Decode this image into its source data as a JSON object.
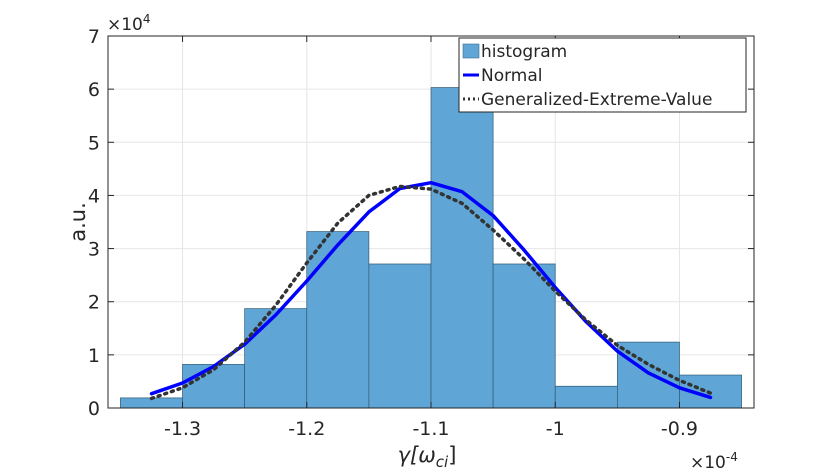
{
  "chart_data": {
    "type": "bar",
    "xlabel": "γ[ω",
    "xlabel_sub": "ci",
    "xlabel_close": "]",
    "ylabel": "a.u.",
    "x_multiplier": "×10",
    "x_multiplier_exp": "-4",
    "y_multiplier": "×10",
    "y_multiplier_exp": "4",
    "xlim": [
      -1.36,
      -0.84
    ],
    "ylim": [
      0,
      7
    ],
    "grid": true,
    "legend_position": "top-right",
    "x_ticks": [
      -1.3,
      -1.2,
      -1.1,
      -1.0,
      -0.9
    ],
    "x_tick_labels": [
      "-1.3",
      "-1.2",
      "-1.1",
      "-1",
      "-0.9"
    ],
    "y_ticks": [
      0,
      1,
      2,
      3,
      4,
      5,
      6,
      7
    ],
    "y_tick_labels": [
      "0",
      "1",
      "2",
      "3",
      "4",
      "5",
      "6",
      "7"
    ],
    "histogram": {
      "name": "histogram",
      "color": "#5fa5d6",
      "edges": [
        -1.35,
        -1.3,
        -1.25,
        -1.2,
        -1.15,
        -1.1,
        -1.05,
        -1.0,
        -0.95,
        -0.9,
        -0.85
      ],
      "values": [
        0.19,
        0.82,
        1.87,
        3.32,
        2.71,
        6.03,
        2.71,
        0.41,
        1.24,
        0.62
      ]
    },
    "series": [
      {
        "name": "Normal",
        "color": "#0000ff",
        "style": "solid",
        "x": [
          -1.325,
          -1.3,
          -1.275,
          -1.25,
          -1.225,
          -1.2,
          -1.175,
          -1.15,
          -1.125,
          -1.1,
          -1.075,
          -1.05,
          -1.025,
          -1.0,
          -0.975,
          -0.95,
          -0.925,
          -0.9,
          -0.875
        ],
        "y": [
          0.27,
          0.47,
          0.78,
          1.2,
          1.75,
          2.39,
          3.07,
          3.69,
          4.13,
          4.24,
          4.07,
          3.62,
          2.97,
          2.27,
          1.62,
          1.07,
          0.66,
          0.38,
          0.2
        ]
      },
      {
        "name": "Generalized-Extreme-Value",
        "color": "#333333",
        "style": "dotted",
        "x": [
          -1.325,
          -1.3,
          -1.275,
          -1.25,
          -1.225,
          -1.2,
          -1.175,
          -1.15,
          -1.125,
          -1.1,
          -1.075,
          -1.05,
          -1.025,
          -1.0,
          -0.975,
          -0.95,
          -0.925,
          -0.9,
          -0.875
        ],
        "y": [
          0.18,
          0.38,
          0.72,
          1.24,
          1.93,
          2.73,
          3.48,
          4.0,
          4.17,
          4.12,
          3.85,
          3.35,
          2.8,
          2.2,
          1.65,
          1.18,
          0.82,
          0.52,
          0.28
        ]
      }
    ]
  }
}
